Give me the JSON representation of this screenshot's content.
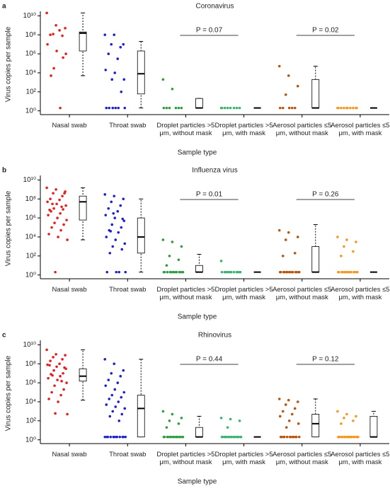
{
  "chart_data": [
    {
      "type": "strip",
      "panel": "a",
      "title": "Coronavirus",
      "y_label": "Virus copies per sample",
      "x_label": "Sample type",
      "log_scale": true,
      "ylim": [
        0.4,
        15000000000.0
      ],
      "yticks": [
        {
          "value": 1,
          "label": "10⁰"
        },
        {
          "value": 100,
          "label": "10²"
        },
        {
          "value": 10000,
          "label": "10⁴"
        },
        {
          "value": 1000000.0,
          "label": "10⁶"
        },
        {
          "value": 100000000.0,
          "label": "10⁸"
        },
        {
          "value": 10000000000.0,
          "label": "10¹⁰"
        }
      ],
      "categories": [
        "Nasal swab",
        "Throat swab",
        "Droplet particles >5 μm, without mask",
        "Droplet particles >5 μm, with mask",
        "Aerosol particles ≤5 μm, without mask",
        "Aerosol particles ≤5 μm, with mask"
      ],
      "colors": [
        "#e4201f",
        "#1f22cc",
        "#2e9e3e",
        "#3cb371",
        "#b8560c",
        "#f39a1e"
      ],
      "groups": [
        {
          "points": [
            20000000000.0,
            1000000000.0,
            500000000.0,
            120000000.0,
            80000000.0,
            100000000.0,
            300000000.0,
            10000000.0,
            2000000.0,
            1000000.0,
            30000.0,
            400000.0,
            5000,
            2
          ],
          "box": [
            5000,
            2000000.0,
            150000000.0,
            200000000.0,
            20000000000.0
          ]
        },
        {
          "points": [
            100000000.0,
            100000000.0,
            10000000.0,
            10000000.0,
            5000000.0,
            1000000.0,
            300000.0,
            20000.0,
            10000.0,
            2000,
            2000,
            100,
            2,
            2,
            2,
            2,
            2,
            2
          ],
          "box": [
            2,
            60,
            8000,
            2000000.0,
            20000000.0
          ]
        },
        {
          "points": [
            2000,
            200,
            2,
            2,
            2,
            2,
            2,
            2
          ],
          "box": [
            2,
            2,
            2,
            20,
            20
          ]
        },
        {
          "points": [
            2,
            2,
            2,
            2,
            2,
            2,
            2,
            2
          ],
          "box": [
            2,
            2,
            2,
            2,
            2
          ]
        },
        {
          "points": [
            50000.0,
            5000,
            400,
            50,
            2,
            2,
            2,
            2,
            2
          ],
          "box": [
            2,
            2,
            2,
            2000,
            50000.0
          ]
        },
        {
          "points": [
            2,
            2,
            2,
            2,
            2,
            2,
            2,
            2,
            2,
            2
          ],
          "box": [
            2,
            2,
            2,
            2,
            2
          ]
        }
      ],
      "annotations": [
        "P = 0.07",
        "P = 0.02"
      ]
    },
    {
      "type": "strip",
      "panel": "b",
      "title": "Influenza virus",
      "y_label": "Virus copies per sample",
      "x_label": "Sample type",
      "log_scale": true,
      "ylim": [
        0.4,
        15000000000.0
      ],
      "yticks": [
        {
          "value": 1,
          "label": "10⁰"
        },
        {
          "value": 100,
          "label": "10²"
        },
        {
          "value": 10000,
          "label": "10⁴"
        },
        {
          "value": 1000000.0,
          "label": "10⁶"
        },
        {
          "value": 100000000.0,
          "label": "10⁸"
        },
        {
          "value": 10000000000.0,
          "label": "10¹⁰"
        }
      ],
      "categories": [
        "Nasal swab",
        "Throat swab",
        "Droplet particles >5 μm, without mask",
        "Droplet particles >5 μm, with mask",
        "Aerosol particles ≤5 μm, without mask",
        "Aerosol particles ≤5 μm, with mask"
      ],
      "colors": [
        "#e4201f",
        "#1f22cc",
        "#2e9e3e",
        "#3cb371",
        "#b8560c",
        "#f39a1e"
      ],
      "groups": [
        {
          "points": [
            1500000000.0,
            1000000000.0,
            600000000.0,
            400000000.0,
            200000000.0,
            100000000.0,
            80000000.0,
            50000000.0,
            30000000.0,
            20000000.0,
            10000000.0,
            8000000.0,
            5000000.0,
            3000000.0,
            2000000.0,
            1000000.0,
            600000.0,
            300000.0,
            200000.0,
            100000.0,
            50000.0,
            20000.0,
            10000.0,
            5000,
            2,
            400000000.0,
            30000000.0,
            15000000.0,
            7000000.0
          ],
          "box": [
            5000,
            600000.0,
            50000000.0,
            200000000.0,
            1500000000.0
          ]
        },
        {
          "points": [
            300000000.0,
            200000000.0,
            100000000.0,
            50000000.0,
            20000000.0,
            10000000.0,
            5000000.0,
            2000000.0,
            1000000.0,
            500000.0,
            200000.0,
            100000.0,
            50000.0,
            30000.0,
            10000.0,
            5000,
            2000,
            1000,
            500,
            200,
            2,
            2,
            2,
            2,
            3000000.0,
            800000.0,
            40000.0
          ],
          "box": [
            2,
            200,
            10000.0,
            1000000.0,
            100000000.0
          ]
        },
        {
          "points": [
            5000,
            3000,
            1000,
            100,
            40,
            10,
            2,
            2,
            2,
            2,
            2,
            2,
            2,
            2,
            2,
            2,
            2,
            2,
            2
          ],
          "box": [
            2,
            2,
            2,
            10,
            150
          ]
        },
        {
          "points": [
            30,
            2,
            2,
            2,
            2,
            2,
            2,
            2,
            2,
            2,
            2,
            2,
            2
          ],
          "box": [
            2,
            2,
            2,
            2,
            2
          ]
        },
        {
          "points": [
            50000.0,
            30000.0,
            10000.0,
            5000,
            200,
            100,
            2,
            2,
            2,
            2,
            2,
            2,
            2,
            2,
            2,
            2,
            2,
            2,
            2,
            2
          ],
          "box": [
            2,
            2,
            2,
            1000,
            200000.0
          ]
        },
        {
          "points": [
            10000.0,
            5000,
            3000,
            1000,
            300,
            100,
            2,
            2,
            2,
            2,
            2,
            2,
            2,
            2,
            2,
            2,
            2,
            2,
            2,
            2
          ],
          "box": [
            2,
            2,
            2,
            2,
            2
          ]
        }
      ],
      "annotations": [
        "P = 0.01",
        "P = 0.26"
      ]
    },
    {
      "type": "strip",
      "panel": "c",
      "title": "Rhinovirus",
      "y_label": "Virus copies per sample",
      "x_label": "Sample type",
      "log_scale": true,
      "ylim": [
        0.4,
        15000000000.0
      ],
      "yticks": [
        {
          "value": 1,
          "label": "10⁰"
        },
        {
          "value": 100,
          "label": "10²"
        },
        {
          "value": 10000,
          "label": "10⁴"
        },
        {
          "value": 1000000.0,
          "label": "10⁶"
        },
        {
          "value": 100000000.0,
          "label": "10⁸"
        },
        {
          "value": 10000000000.0,
          "label": "10¹⁰"
        }
      ],
      "categories": [
        "Nasal swab",
        "Throat swab",
        "Droplet particles >5 μm, without mask",
        "Droplet particles >5 μm, with mask",
        "Aerosol particles ≤5 μm, without mask",
        "Aerosol particles ≤5 μm, with mask"
      ],
      "colors": [
        "#e4201f",
        "#1f22cc",
        "#2e9e3e",
        "#3cb371",
        "#b8560c",
        "#f39a1e"
      ],
      "groups": [
        {
          "points": [
            3000000000.0,
            1000000000.0,
            800000000.0,
            500000000.0,
            300000000.0,
            200000000.0,
            100000000.0,
            80000000.0,
            50000000.0,
            30000000.0,
            20000000.0,
            10000000.0,
            8000000.0,
            5000000.0,
            3000000.0,
            2000000.0,
            1000000.0,
            500000.0,
            200000.0,
            100000.0,
            50000.0,
            20000.0,
            10000.0,
            500,
            600,
            40000000.0,
            6000000.0,
            1500000.0,
            70000000.0
          ],
          "box": [
            15000.0,
            1500000.0,
            5000000.0,
            30000000.0,
            3000000000.0
          ]
        },
        {
          "points": [
            300000000.0,
            100000000.0,
            20000000.0,
            10000000.0,
            5000000.0,
            2000000.0,
            1000000.0,
            500000.0,
            200000.0,
            100000.0,
            50000.0,
            30000.0,
            20000.0,
            10000.0,
            5000,
            3000,
            2000,
            1000,
            500,
            300,
            100,
            2,
            2,
            2,
            2,
            2,
            2,
            2,
            2,
            2,
            2,
            2,
            2
          ],
          "box": [
            2,
            2,
            2000,
            50000.0,
            300000000.0
          ]
        },
        {
          "points": [
            1000,
            500,
            200,
            100,
            50,
            20,
            2,
            2,
            2,
            2,
            2,
            2,
            2,
            2,
            2,
            2,
            2,
            2,
            2,
            2,
            2
          ],
          "box": [
            2,
            2,
            2,
            20,
            300
          ]
        },
        {
          "points": [
            200,
            150,
            100,
            20,
            2,
            2,
            2,
            2,
            2,
            2,
            2,
            2,
            2,
            2,
            2,
            2,
            2,
            2,
            2,
            2
          ],
          "box": [
            2,
            2,
            2,
            2,
            2
          ]
        },
        {
          "points": [
            20000.0,
            15000.0,
            10000.0,
            5000,
            2000,
            1000,
            500,
            300,
            100,
            50,
            20,
            2,
            2,
            2,
            2,
            2,
            2,
            2,
            2,
            2,
            2,
            2,
            2
          ],
          "box": [
            2,
            2,
            50,
            500,
            20000.0
          ]
        },
        {
          "points": [
            1000,
            500,
            300,
            200,
            100,
            50,
            2,
            2,
            2,
            2,
            2,
            2,
            2,
            2,
            2,
            2,
            2,
            2,
            2,
            2,
            2,
            2,
            2,
            2
          ],
          "box": [
            2,
            2,
            2,
            300,
            1000
          ]
        }
      ],
      "annotations": [
        "P = 0.44",
        "P = 0.12"
      ]
    }
  ]
}
